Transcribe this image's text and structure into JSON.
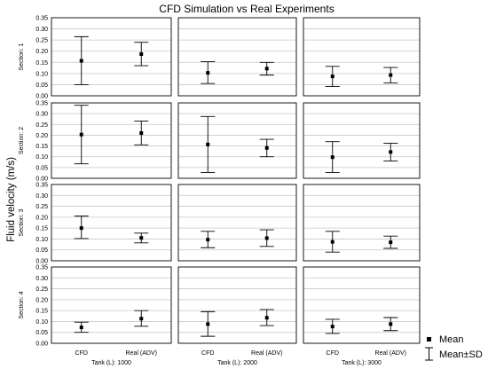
{
  "chart_data": {
    "type": "scatter",
    "title": "CFD Simulation vs Real Experiments",
    "ylabel": "Fluid velocity (m/s)",
    "ylim": [
      0,
      0.35
    ],
    "yticks": [
      0.0,
      0.05,
      0.1,
      0.15,
      0.2,
      0.25,
      0.3,
      0.35
    ],
    "grid": true,
    "categories": [
      "CFD",
      "Real (ADV)"
    ],
    "row_labels": [
      "Section: 1",
      "Section: 2",
      "Section: 3",
      "Section: 4"
    ],
    "col_labels": [
      "Tank (L): 1000",
      "Tank (L): 2000",
      "Tank (L): 3000"
    ],
    "legend": {
      "position": "bottom-right",
      "items": [
        {
          "label": "Mean",
          "symbol": "square"
        },
        {
          "label": "Mean±SD",
          "symbol": "whisker"
        }
      ]
    },
    "panels": [
      {
        "section": "Section: 1",
        "tank": "Tank (L): 1000",
        "points": [
          {
            "category": "CFD",
            "mean": 0.157,
            "low": 0.05,
            "high": 0.265
          },
          {
            "category": "Real (ADV)",
            "mean": 0.187,
            "low": 0.135,
            "high": 0.24
          }
        ]
      },
      {
        "section": "Section: 1",
        "tank": "Tank (L): 2000",
        "points": [
          {
            "category": "CFD",
            "mean": 0.103,
            "low": 0.055,
            "high": 0.153
          },
          {
            "category": "Real (ADV)",
            "mean": 0.122,
            "low": 0.093,
            "high": 0.15
          }
        ]
      },
      {
        "section": "Section: 1",
        "tank": "Tank (L): 3000",
        "points": [
          {
            "category": "CFD",
            "mean": 0.087,
            "low": 0.042,
            "high": 0.132
          },
          {
            "category": "Real (ADV)",
            "mean": 0.093,
            "low": 0.058,
            "high": 0.127
          }
        ]
      },
      {
        "section": "Section: 2",
        "tank": "Tank (L): 1000",
        "points": [
          {
            "category": "CFD",
            "mean": 0.203,
            "low": 0.067,
            "high": 0.339
          },
          {
            "category": "Real (ADV)",
            "mean": 0.21,
            "low": 0.155,
            "high": 0.266
          }
        ]
      },
      {
        "section": "Section: 2",
        "tank": "Tank (L): 2000",
        "points": [
          {
            "category": "CFD",
            "mean": 0.157,
            "low": 0.027,
            "high": 0.287
          },
          {
            "category": "Real (ADV)",
            "mean": 0.141,
            "low": 0.1,
            "high": 0.181
          }
        ]
      },
      {
        "section": "Section: 2",
        "tank": "Tank (L): 3000",
        "points": [
          {
            "category": "CFD",
            "mean": 0.098,
            "low": 0.027,
            "high": 0.17
          },
          {
            "category": "Real (ADV)",
            "mean": 0.122,
            "low": 0.08,
            "high": 0.163
          }
        ]
      },
      {
        "section": "Section: 3",
        "tank": "Tank (L): 1000",
        "points": [
          {
            "category": "CFD",
            "mean": 0.15,
            "low": 0.102,
            "high": 0.205
          },
          {
            "category": "Real (ADV)",
            "mean": 0.105,
            "low": 0.082,
            "high": 0.127
          }
        ]
      },
      {
        "section": "Section: 3",
        "tank": "Tank (L): 2000",
        "points": [
          {
            "category": "CFD",
            "mean": 0.097,
            "low": 0.06,
            "high": 0.135
          },
          {
            "category": "Real (ADV)",
            "mean": 0.104,
            "low": 0.066,
            "high": 0.142
          }
        ]
      },
      {
        "section": "Section: 3",
        "tank": "Tank (L): 3000",
        "points": [
          {
            "category": "CFD",
            "mean": 0.087,
            "low": 0.04,
            "high": 0.135
          },
          {
            "category": "Real (ADV)",
            "mean": 0.085,
            "low": 0.057,
            "high": 0.113
          }
        ]
      },
      {
        "section": "Section: 4",
        "tank": "Tank (L): 1000",
        "points": [
          {
            "category": "CFD",
            "mean": 0.073,
            "low": 0.05,
            "high": 0.097
          },
          {
            "category": "Real (ADV)",
            "mean": 0.113,
            "low": 0.078,
            "high": 0.15
          }
        ]
      },
      {
        "section": "Section: 4",
        "tank": "Tank (L): 2000",
        "points": [
          {
            "category": "CFD",
            "mean": 0.088,
            "low": 0.032,
            "high": 0.145
          },
          {
            "category": "Real (ADV)",
            "mean": 0.117,
            "low": 0.081,
            "high": 0.155
          }
        ]
      },
      {
        "section": "Section: 4",
        "tank": "Tank (L): 3000",
        "points": [
          {
            "category": "CFD",
            "mean": 0.077,
            "low": 0.045,
            "high": 0.11
          },
          {
            "category": "Real (ADV)",
            "mean": 0.088,
            "low": 0.058,
            "high": 0.118
          }
        ]
      }
    ]
  }
}
